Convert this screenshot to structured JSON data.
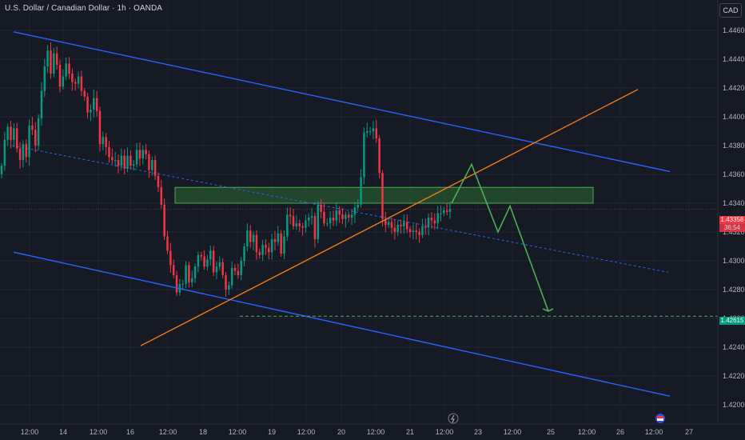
{
  "header": {
    "title": "U.S. Dollar / Canadian Dollar · 1h · OANDA",
    "currency": "CAD"
  },
  "price_tags": {
    "current": "1.43358",
    "countdown": "36:54",
    "target": "1.42615"
  },
  "colors": {
    "background": "#161a25",
    "up_candle": "#089981",
    "down_candle": "#f23645",
    "channel": "#2962ff",
    "trendline": "#ff7f0e",
    "zone_fill": "#2e7d32",
    "zone_border": "#4caf50",
    "projection": "#4caf50",
    "target_line": "#4caf50"
  },
  "icons": {
    "events": "lightning-icon",
    "flag": "flag-icon"
  },
  "chart_data": {
    "type": "candlestick",
    "symbol": "U.S. Dollar / Canadian Dollar",
    "interval": "1h",
    "source": "OANDA",
    "ylim": [
      1.419,
      1.4475
    ],
    "y_ticks": [
      "1.44600",
      "1.44400",
      "1.44200",
      "1.44000",
      "1.43800",
      "1.43600",
      "1.43400",
      "1.43200",
      "1.43000",
      "1.42800",
      "1.42600",
      "1.42400",
      "1.42200",
      "1.42000"
    ],
    "x_ticks": [
      "12:00",
      "14",
      "12:00",
      "16",
      "12:00",
      "18",
      "12:00",
      "19",
      "12:00",
      "20",
      "12:00",
      "21",
      "12:00",
      "23",
      "12:00",
      "25",
      "12:00",
      "26",
      "12:00",
      "27"
    ],
    "current_price": 1.43358,
    "target_price": 1.42615,
    "closes": [
      1.4366,
      1.4384,
      1.4393,
      1.4384,
      1.4392,
      1.4378,
      1.437,
      1.4381,
      1.4372,
      1.4394,
      1.4391,
      1.438,
      1.4399,
      1.4418,
      1.4435,
      1.4446,
      1.443,
      1.4444,
      1.4436,
      1.4421,
      1.4428,
      1.4437,
      1.443,
      1.4424,
      1.4423,
      1.4428,
      1.4418,
      1.4414,
      1.4403,
      1.4405,
      1.4413,
      1.4404,
      1.4381,
      1.4386,
      1.4379,
      1.4372,
      1.437,
      1.437,
      1.4366,
      1.4373,
      1.4364,
      1.4373,
      1.4366,
      1.4367,
      1.4377,
      1.4371,
      1.4377,
      1.4374,
      1.4363,
      1.437,
      1.4359,
      1.4351,
      1.4339,
      1.4317,
      1.4307,
      1.4297,
      1.429,
      1.4278,
      1.4284,
      1.4284,
      1.4297,
      1.4285,
      1.4288,
      1.4296,
      1.4304,
      1.4303,
      1.4296,
      1.4301,
      1.4307,
      1.4292,
      1.4296,
      1.4299,
      1.429,
      1.428,
      1.4283,
      1.4295,
      1.4293,
      1.429,
      1.43,
      1.431,
      1.4321,
      1.4313,
      1.4318,
      1.4306,
      1.4304,
      1.4311,
      1.4309,
      1.4306,
      1.4315,
      1.4313,
      1.4319,
      1.4305,
      1.4317,
      1.4332,
      1.4331,
      1.4324,
      1.4326,
      1.4324,
      1.4323,
      1.4328,
      1.433,
      1.4331,
      1.4315,
      1.4339,
      1.4334,
      1.4326,
      1.4326,
      1.433,
      1.4328,
      1.4335,
      1.4332,
      1.4329,
      1.4332,
      1.433,
      1.4332,
      1.4337,
      1.4339,
      1.4358,
      1.4389,
      1.439,
      1.439,
      1.4392,
      1.4385,
      1.4361,
      1.4329,
      1.4325,
      1.4327,
      1.4323,
      1.432,
      1.4325,
      1.4324,
      1.4327,
      1.4322,
      1.432,
      1.4321,
      1.432,
      1.4318,
      1.4324,
      1.4323,
      1.433,
      1.4328,
      1.4326,
      1.4333,
      1.4333,
      1.4335,
      1.4334,
      1.4336
    ]
  }
}
